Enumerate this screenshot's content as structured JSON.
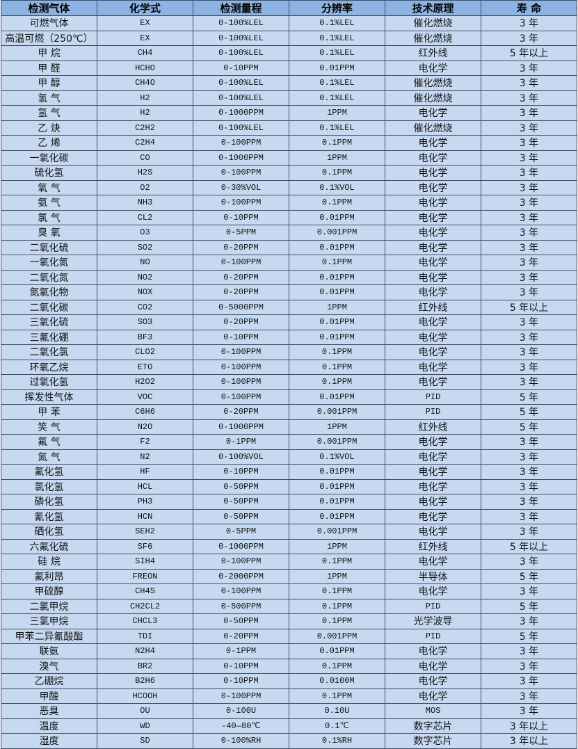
{
  "colors": {
    "header_bg": "#8db3e2",
    "row_bg": "#c6d9f1",
    "border": "#3d4f66"
  },
  "headers": [
    "检测气体",
    "化学式",
    "检测量程",
    "分辨率",
    "技术原理",
    "寿 命"
  ],
  "rows": [
    [
      "可燃气体",
      "EX",
      "0-100%LEL",
      "0.1%LEL",
      "催化燃烧",
      "3 年"
    ],
    [
      "高温可燃（250℃）",
      "EX",
      "0-100%LEL",
      "0.1%LEL",
      "催化燃烧",
      "3 年"
    ],
    [
      "甲 烷",
      "CH4",
      "0-100%LEL",
      "0.1%LEL",
      "红外线",
      "5 年以上"
    ],
    [
      "甲 醛",
      "HCHO",
      "0-10PPM",
      "0.01PPM",
      "电化学",
      "3 年"
    ],
    [
      "甲 醇",
      "CH4O",
      "0-100%LEL",
      "0.1%LEL",
      "催化燃烧",
      "3 年"
    ],
    [
      "氢 气",
      "H2",
      "0-100%LEL",
      "0.1%LEL",
      "催化燃烧",
      "3 年"
    ],
    [
      "氢 气",
      "H2",
      "0-1000PPM",
      "1PPM",
      "电化学",
      "3 年"
    ],
    [
      "乙 炔",
      "C2H2",
      "0-100%LEL",
      "0.1%LEL",
      "催化燃烧",
      "3 年"
    ],
    [
      "乙 烯",
      "C2H4",
      "0-100PPM",
      "0.1PPM",
      "电化学",
      "3 年"
    ],
    [
      "一氧化碳",
      "CO",
      "0-1000PPM",
      "1PPM",
      "电化学",
      "3 年"
    ],
    [
      "硫化氢",
      "H2S",
      "0-100PPM",
      "0.1PPM",
      "电化学",
      "3 年"
    ],
    [
      "氧 气",
      "O2",
      "0-30%VOL",
      "0.1%VOL",
      "电化学",
      "3 年"
    ],
    [
      "氨 气",
      "NH3",
      "0-100PPM",
      "0.1PPM",
      "电化学",
      "3 年"
    ],
    [
      "氯 气",
      "CL2",
      "0-10PPM",
      "0.01PPM",
      "电化学",
      "3 年"
    ],
    [
      "臭 氧",
      "O3",
      "0-5PPM",
      "0.001PPM",
      "电化学",
      "3 年"
    ],
    [
      "二氧化硫",
      "SO2",
      "0-20PPM",
      "0.01PPM",
      "电化学",
      "3 年"
    ],
    [
      "一氧化氮",
      "NO",
      "0-100PPM",
      "0.1PPM",
      "电化学",
      "3 年"
    ],
    [
      "二氧化氮",
      "NO2",
      "0-20PPM",
      "0.01PPM",
      "电化学",
      "3 年"
    ],
    [
      "氮氧化物",
      "NOX",
      "0-20PPM",
      "0.01PPM",
      "电化学",
      "3 年"
    ],
    [
      "二氧化碳",
      "CO2",
      "0-5000PPM",
      "1PPM",
      "红外线",
      "5 年以上"
    ],
    [
      "三氧化硫",
      "SO3",
      "0-20PPM",
      "0.01PPM",
      "电化学",
      "3 年"
    ],
    [
      "三氟化硼",
      "BF3",
      "0-10PPM",
      "0.01PPM",
      "电化学",
      "3 年"
    ],
    [
      "二氧化氯",
      "CLO2",
      "0-100PPM",
      "0.1PPM",
      "电化学",
      "3 年"
    ],
    [
      "环氧乙烷",
      "ETO",
      "0-100PPM",
      "0.1PPM",
      "电化学",
      "3 年"
    ],
    [
      "过氧化氢",
      "H2O2",
      "0-100PPM",
      "0.1PPM",
      "电化学",
      "3 年"
    ],
    [
      "挥发性气体",
      "VOC",
      "0-100PPM",
      "0.01PPM",
      "PID",
      "5 年"
    ],
    [
      "甲 苯",
      "C6H6",
      "0-20PPM",
      "0.001PPM",
      "PID",
      "5 年"
    ],
    [
      "笑 气",
      "N2O",
      "0-1000PPM",
      "1PPM",
      "红外线",
      "5 年"
    ],
    [
      "氟 气",
      "F2",
      "0-1PPM",
      "0.001PPM",
      "电化学",
      "3 年"
    ],
    [
      "氮 气",
      "N2",
      "0-100%VOL",
      "0.1%VOL",
      "电化学",
      "3 年"
    ],
    [
      "氟化氢",
      "HF",
      "0-10PPM",
      "0.01PPM",
      "电化学",
      "3 年"
    ],
    [
      "氯化氢",
      "HCL",
      "0-50PPM",
      "0.01PPM",
      "电化学",
      "3 年"
    ],
    [
      "磷化氢",
      "PH3",
      "0-50PPM",
      "0.01PPM",
      "电化学",
      "3 年"
    ],
    [
      "氰化氢",
      "HCN",
      "0-50PPM",
      "0.01PPM",
      "电化学",
      "3 年"
    ],
    [
      "硒化氢",
      "SEH2",
      "0-5PPM",
      "0.001PPM",
      "电化学",
      "3 年"
    ],
    [
      "六氟化硫",
      "SF6",
      "0-1000PPM",
      "1PPM",
      "红外线",
      "5 年以上"
    ],
    [
      "硅 烷",
      "SIH4",
      "0-100PPM",
      "0.1PPM",
      "电化学",
      "3 年"
    ],
    [
      "氟利昂",
      "FREON",
      "0-2000PPM",
      "1PPM",
      "半导体",
      "5 年"
    ],
    [
      "甲硫醇",
      "CH4S",
      "0-100PPM",
      "0.1PPM",
      "电化学",
      "3 年"
    ],
    [
      "二氯甲烷",
      "CH2CL2",
      "0-500PPM",
      "0.1PPM",
      "PID",
      "5 年"
    ],
    [
      "三氯甲烷",
      "CHCL3",
      "0-50PPM",
      "0.1PPM",
      "光学波导",
      "3 年"
    ],
    [
      "甲苯二异氰酸酯",
      "TDI",
      "0-20PPM",
      "0.001PPM",
      "PID",
      "5 年"
    ],
    [
      "联氨",
      "N2H4",
      "0-1PPM",
      "0.01PPM",
      "电化学",
      "3 年"
    ],
    [
      "溴气",
      "BR2",
      "0-10PPM",
      "0.1PPM",
      "电化学",
      "3 年"
    ],
    [
      "乙硼烷",
      "B2H6",
      "0-10PPM",
      "0.0100M",
      "电化学",
      "3 年"
    ],
    [
      "甲酸",
      "HCOOH",
      "0-100PPM",
      "0.1PPM",
      "电化学",
      "3 年"
    ],
    [
      "恶臭",
      "OU",
      "0-100U",
      "0.10U",
      "MOS",
      "3 年"
    ],
    [
      "温度",
      "WD",
      "-40—80℃",
      "0.1℃",
      "数字芯片",
      "3 年以上"
    ],
    [
      "湿度",
      "SD",
      "0-100%RH",
      "0.1%RH",
      "数字芯片",
      "3 年以上"
    ]
  ]
}
